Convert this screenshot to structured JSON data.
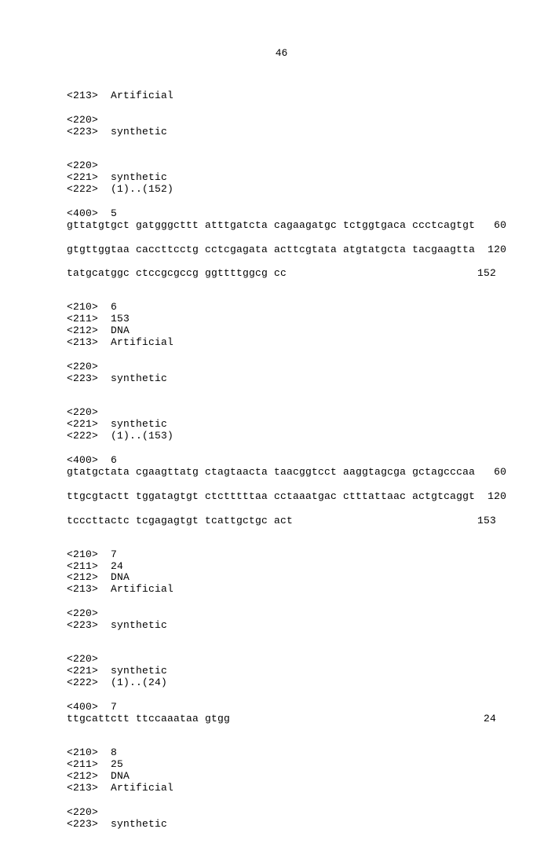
{
  "page_number": "46",
  "typography": {
    "font_family": "Courier New",
    "font_size_pt": 10,
    "color": "#000000"
  },
  "background_color": "#ffffff",
  "blocks": [
    {
      "type": "line",
      "text": "<213>  Artificial"
    },
    {
      "type": "gap",
      "size": "med"
    },
    {
      "type": "line",
      "text": "<220>"
    },
    {
      "type": "line",
      "text": "<223>  synthetic"
    },
    {
      "type": "gap",
      "size": "big"
    },
    {
      "type": "line",
      "text": "<220>"
    },
    {
      "type": "line",
      "text": "<221>  synthetic"
    },
    {
      "type": "line",
      "text": "<222>  (1)..(152)"
    },
    {
      "type": "gap",
      "size": "med"
    },
    {
      "type": "line",
      "text": "<400>  5"
    },
    {
      "type": "seq",
      "text": "gttatgtgct gatgggcttt atttgatcta cagaagatgc tctggtgaca ccctcagtgt",
      "num": "60"
    },
    {
      "type": "gap",
      "size": "med"
    },
    {
      "type": "seq",
      "text": "gtgttggtaa caccttcctg cctcgagata acttcgtata atgtatgcta tacgaagtta",
      "num": "120"
    },
    {
      "type": "gap",
      "size": "med"
    },
    {
      "type": "seq",
      "text": "tatgcatggc ctccgcgccg ggttttggcg cc",
      "num": "152"
    },
    {
      "type": "gap",
      "size": "big"
    },
    {
      "type": "line",
      "text": "<210>  6"
    },
    {
      "type": "line",
      "text": "<211>  153"
    },
    {
      "type": "line",
      "text": "<212>  DNA"
    },
    {
      "type": "line",
      "text": "<213>  Artificial"
    },
    {
      "type": "gap",
      "size": "med"
    },
    {
      "type": "line",
      "text": "<220>"
    },
    {
      "type": "line",
      "text": "<223>  synthetic"
    },
    {
      "type": "gap",
      "size": "big"
    },
    {
      "type": "line",
      "text": "<220>"
    },
    {
      "type": "line",
      "text": "<221>  synthetic"
    },
    {
      "type": "line",
      "text": "<222>  (1)..(153)"
    },
    {
      "type": "gap",
      "size": "med"
    },
    {
      "type": "line",
      "text": "<400>  6"
    },
    {
      "type": "seq",
      "text": "gtatgctata cgaagttatg ctagtaacta taacggtcct aaggtagcga gctagcccaa",
      "num": "60"
    },
    {
      "type": "gap",
      "size": "med"
    },
    {
      "type": "seq",
      "text": "ttgcgtactt tggatagtgt ctctttttaa cctaaatgac ctttattaac actgtcaggt",
      "num": "120"
    },
    {
      "type": "gap",
      "size": "med"
    },
    {
      "type": "seq",
      "text": "tcccttactc tcgagagtgt tcattgctgc act",
      "num": "153"
    },
    {
      "type": "gap",
      "size": "big"
    },
    {
      "type": "line",
      "text": "<210>  7"
    },
    {
      "type": "line",
      "text": "<211>  24"
    },
    {
      "type": "line",
      "text": "<212>  DNA"
    },
    {
      "type": "line",
      "text": "<213>  Artificial"
    },
    {
      "type": "gap",
      "size": "med"
    },
    {
      "type": "line",
      "text": "<220>"
    },
    {
      "type": "line",
      "text": "<223>  synthetic"
    },
    {
      "type": "gap",
      "size": "big"
    },
    {
      "type": "line",
      "text": "<220>"
    },
    {
      "type": "line",
      "text": "<221>  synthetic"
    },
    {
      "type": "line",
      "text": "<222>  (1)..(24)"
    },
    {
      "type": "gap",
      "size": "med"
    },
    {
      "type": "line",
      "text": "<400>  7"
    },
    {
      "type": "seq",
      "text": "ttgcattctt ttccaaataa gtgg",
      "num": "24"
    },
    {
      "type": "gap",
      "size": "big"
    },
    {
      "type": "line",
      "text": "<210>  8"
    },
    {
      "type": "line",
      "text": "<211>  25"
    },
    {
      "type": "line",
      "text": "<212>  DNA"
    },
    {
      "type": "line",
      "text": "<213>  Artificial"
    },
    {
      "type": "gap",
      "size": "med"
    },
    {
      "type": "line",
      "text": "<220>"
    },
    {
      "type": "line",
      "text": "<223>  synthetic"
    }
  ]
}
